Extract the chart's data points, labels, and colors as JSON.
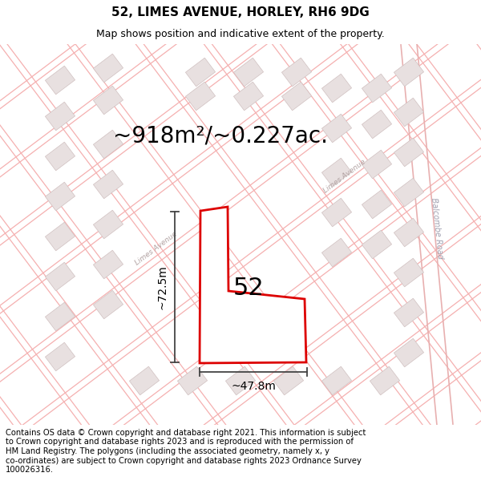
{
  "title": "52, LIMES AVENUE, HORLEY, RH6 9DG",
  "subtitle": "Map shows position and indicative extent of the property.",
  "area_label": "~918m²/~0.227ac.",
  "number_label": "52",
  "width_label": "~47.8m",
  "height_label": "~72.5m",
  "footer": "Contains OS data © Crown copyright and database right 2021. This information is subject\nto Crown copyright and database rights 2023 and is reproduced with the permission of\nHM Land Registry. The polygons (including the associated geometry, namely x, y\nco-ordinates) are subject to Crown copyright and database rights 2023 Ordnance Survey\n100026316.",
  "bg_color": "#ffffff",
  "map_bg": "#ffffff",
  "road_color": "#f5c0c0",
  "road_color2": "#f0b0b0",
  "building_fill": "#e8e0e0",
  "building_edge": "#d0c0c0",
  "plot_color": "#dd0000",
  "dim_color": "#444444",
  "title_fontsize": 11,
  "subtitle_fontsize": 9,
  "area_fontsize": 20,
  "number_fontsize": 22,
  "dim_fontsize": 10,
  "footer_fontsize": 7.2,
  "road_label_color": "#b0a0a0",
  "road_label_fontsize": 6.5,
  "balcombe_label_color": "#a0a0b0",
  "balcombe_label_fontsize": 7
}
